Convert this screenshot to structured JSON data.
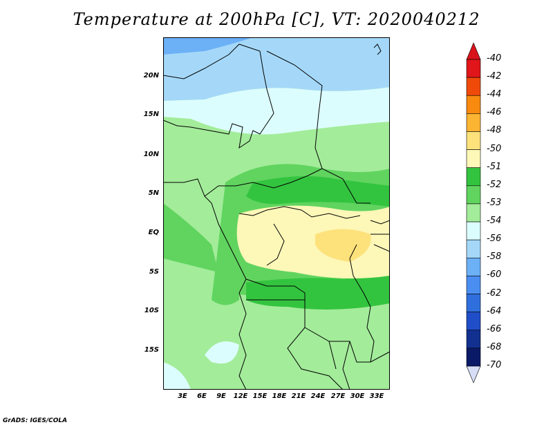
{
  "title": "Temperature at 200hPa [C], VT: 2020040212",
  "credit": "GrADS: IGES/COLA",
  "map": {
    "lat_labels": [
      "20N",
      "15N",
      "10N",
      "5N",
      "EQ",
      "5S",
      "10S",
      "15S"
    ],
    "lon_labels": [
      "3E",
      "6E",
      "9E",
      "12E",
      "15E",
      "18E",
      "21E",
      "24E",
      "27E",
      "30E",
      "33E"
    ]
  },
  "colorbar": {
    "labels": [
      "-40",
      "-42",
      "-44",
      "-46",
      "-48",
      "-50",
      "-51",
      "-52",
      "-53",
      "-54",
      "-56",
      "-58",
      "-60",
      "-62",
      "-64",
      "-66",
      "-68",
      "-70"
    ],
    "colors": [
      "#e0161a",
      "#f04a0b",
      "#f88a10",
      "#fbb533",
      "#fde27c",
      "#fdf7b8",
      "#33c43f",
      "#60d45f",
      "#a3ec9a",
      "#dcfdfd",
      "#a5d8f8",
      "#6cb0f6",
      "#4a8ef2",
      "#2f6fdd",
      "#1f4ec8",
      "#12308f",
      "#0a1a66"
    ],
    "top_arrow_color": "#d8131b",
    "bottom_arrow_color": "#d6ddf5"
  },
  "palette": {
    "val_minus50": "#fdf7b8",
    "val_minus49": "#fde27c",
    "val_minus51": "#33c43f",
    "val_minus52": "#60d45f",
    "val_minus53": "#a3ec9a",
    "val_minus54": "#dcfdfd",
    "val_minus56": "#a5d8f8",
    "val_minus58": "#6cb0f6"
  }
}
